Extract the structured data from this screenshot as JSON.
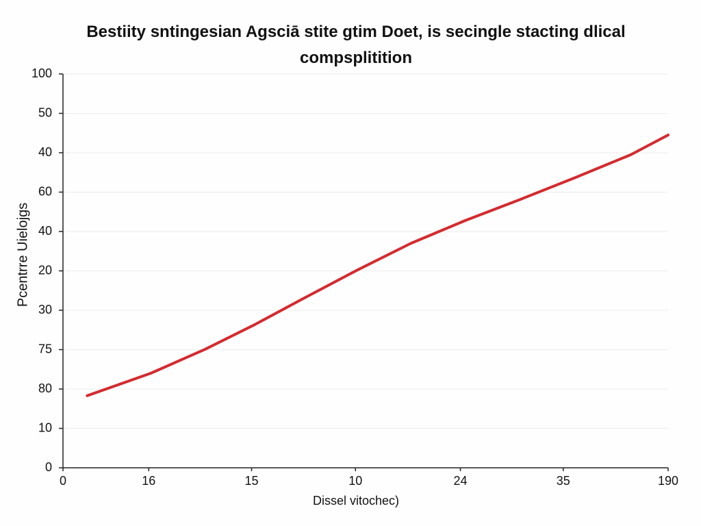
{
  "chart_data": {
    "type": "line",
    "title": "Bestiity sntingesian  Agsciā stite gtim Doet, is secingle stacting dlical compsplitition",
    "x_label": "Dissel vitochec)",
    "y_label": "Pcentrre Uielojgs",
    "xlim": [
      0,
      60
    ],
    "xticks": [
      0,
      {
        "value": 8.5,
        "label": "16"
      },
      {
        "value": 18.7,
        "label": "15"
      },
      {
        "value": 29,
        "label": "10"
      },
      {
        "value": 39.4,
        "label": "24"
      },
      {
        "value": 49.6,
        "label": "35"
      },
      {
        "value": 60,
        "label": "190"
      }
    ],
    "ylim": [
      0,
      100
    ],
    "yticks": [
      0,
      10,
      {
        "value": 20,
        "label": "80"
      },
      {
        "value": 30,
        "label": "75"
      },
      {
        "value": 40,
        "label": "30"
      },
      {
        "value": 50,
        "label": "20"
      },
      {
        "value": 60,
        "label": "40"
      },
      {
        "value": 70,
        "label": "60"
      },
      {
        "value": 80,
        "label": "40"
      },
      {
        "value": 90,
        "label": "50"
      },
      100
    ],
    "grid": true,
    "series": [
      {
        "color": "#d42a2f",
        "x": [
          2.4,
          8.7,
          14.1,
          18.9,
          23.7,
          29.1,
          34.5,
          39.9,
          45.4,
          50.8,
          56.3,
          60
        ],
        "values": [
          18.3,
          24.0,
          30.1,
          36.2,
          42.8,
          50.1,
          57.0,
          62.8,
          68.2,
          73.7,
          79.5,
          84.5
        ]
      }
    ]
  }
}
